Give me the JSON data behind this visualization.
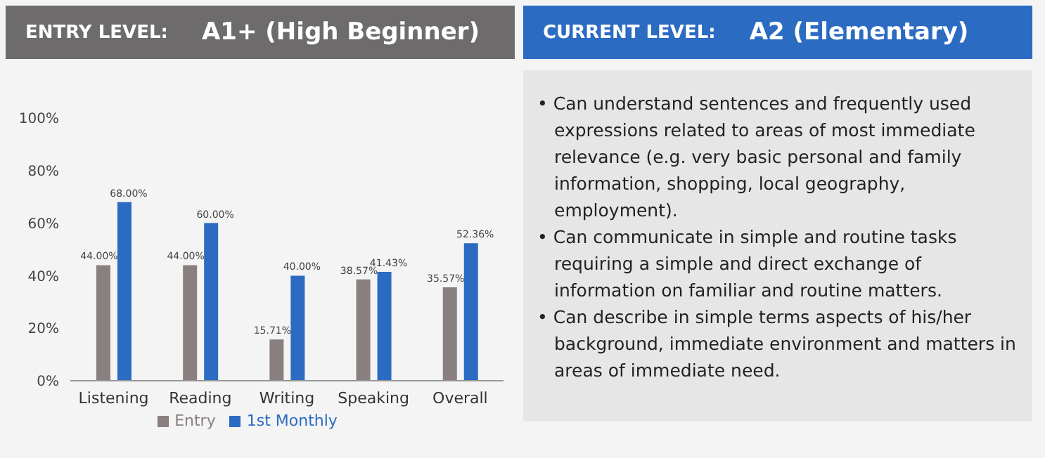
{
  "chart_data": [
    {
      "type": "bar",
      "title": "ENTRY LEVEL:",
      "subtitle": "A1+ (High Beginner)",
      "categories": [
        "Listening",
        "Reading",
        "Writing",
        "Speaking",
        "Overall"
      ],
      "series": [
        {
          "name": "Entry",
          "color": "#8a7f7f",
          "values": [
            44.0,
            44.0,
            15.71,
            38.57,
            35.57
          ],
          "value_labels": [
            "44.00%",
            "44.00%",
            "15.71%",
            "38.57%",
            "35.57%"
          ]
        },
        {
          "name": "1st Monthly",
          "color": "#2b6cc2",
          "values": [
            68.0,
            60.0,
            40.0,
            41.43,
            52.36
          ],
          "value_labels": [
            "68.00%",
            "60.00%",
            "40.00%",
            "41.43%",
            "52.36%"
          ]
        }
      ],
      "ylim": [
        0,
        100
      ],
      "yticks": [
        {
          "value": 0,
          "label": "0%"
        },
        {
          "value": 20,
          "label": "20%"
        },
        {
          "value": 40,
          "label": "40%"
        },
        {
          "value": 60,
          "label": "60%"
        },
        {
          "value": 80,
          "label": "80%"
        },
        {
          "value": 100,
          "label": "100%"
        }
      ],
      "legend": "bottom"
    },
    {
      "type": "other",
      "title": "CURRENT LEVEL:",
      "subtitle": "A2 (Elementary)",
      "annotations": [
        "• Can understand sentences and frequently used expressions related to areas of most immediate relevance (e.g. very basic personal and family information, shopping, local geography, employment).",
        "• Can communicate in simple and routine tasks requiring a simple and direct exchange of information on familiar and routine matters.",
        "• Can describe in simple terms aspects of his/her background, immediate environment and matters in areas of immediate need."
      ]
    }
  ]
}
